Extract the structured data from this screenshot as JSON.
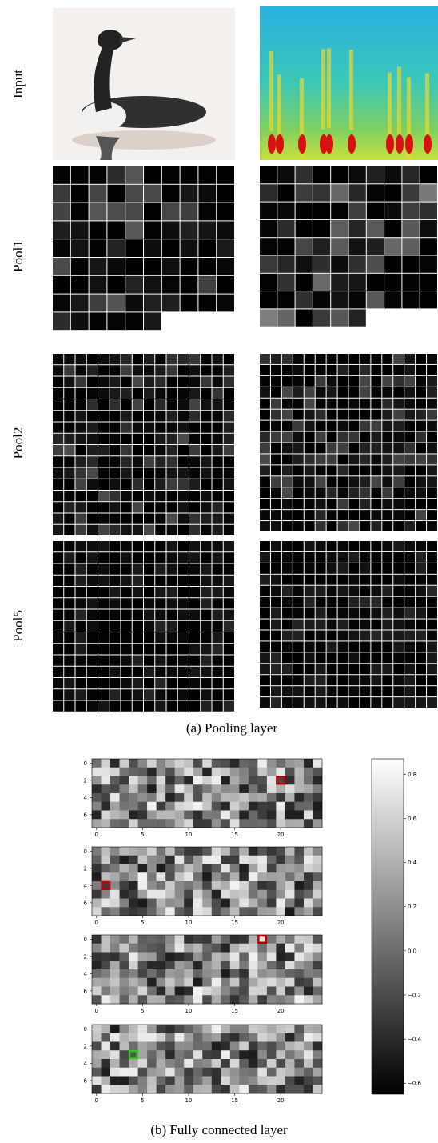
{
  "row_labels": [
    "Input",
    "Pool1",
    "Pool2",
    "Pool5"
  ],
  "captions": {
    "pooling": "(a) Pooling layer",
    "fully_connected": "(b) Fully connected layer"
  },
  "heatmaps": {
    "xticks": [
      0,
      5,
      10,
      15,
      20
    ],
    "yticks": [
      0,
      2,
      4,
      6
    ]
  },
  "colorbar": {
    "lim": [
      -0.65,
      0.87
    ],
    "ticks": [
      0.8,
      0.6,
      0.4,
      0.2,
      {
        "value": 0,
        "label": "0.0"
      },
      {
        "value": -0.2,
        "label": "−0.2"
      },
      {
        "value": -0.4,
        "label": "−0.4"
      },
      {
        "value": -0.6,
        "label": "−0.6"
      }
    ]
  }
}
